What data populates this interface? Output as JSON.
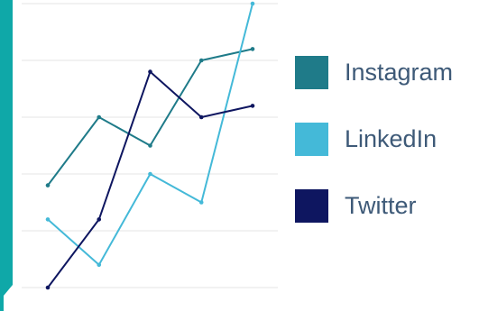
{
  "colors": {
    "background": "#ffffff",
    "gridline": "#e6e6e6",
    "accent_bar": "#0fa8a8",
    "legend_text": "#3e5a78"
  },
  "chart_data": {
    "type": "line",
    "title": "",
    "xlabel": "",
    "ylabel": "",
    "x": [
      1,
      2,
      3,
      4,
      5
    ],
    "ylim": [
      0,
      5
    ],
    "grid": "horizontal",
    "legend_placement": "right",
    "series": [
      {
        "name": "Instagram",
        "color": "#1f7b89",
        "values": [
          1.8,
          3.0,
          2.5,
          4.0,
          4.2
        ]
      },
      {
        "name": "LinkedIn",
        "color": "#44b9d8",
        "values": [
          1.2,
          0.4,
          2.0,
          1.5,
          5.0
        ]
      },
      {
        "name": "Twitter",
        "color": "#0e1660",
        "values": [
          0.0,
          1.2,
          3.8,
          3.0,
          3.2
        ]
      }
    ]
  }
}
